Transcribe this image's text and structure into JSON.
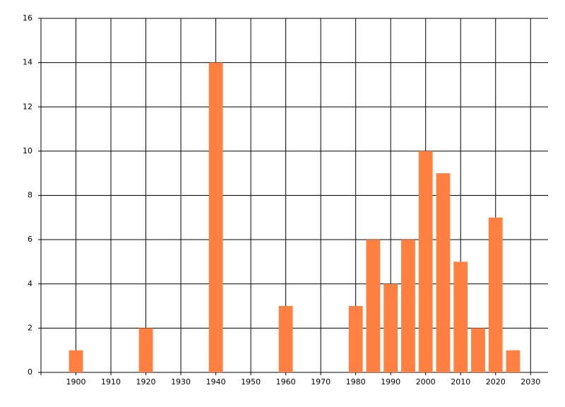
{
  "chart_data": {
    "type": "bar",
    "x": [
      1900,
      1920,
      1940,
      1960,
      1980,
      1985,
      1990,
      1995,
      2000,
      2005,
      2010,
      2015,
      2020,
      2025
    ],
    "values": [
      1,
      2,
      14,
      3,
      3,
      6,
      4,
      6,
      10,
      9,
      5,
      2,
      7,
      1
    ],
    "color": "#ff8040",
    "xlim": [
      1890,
      2035
    ],
    "xticks": [
      1900,
      1910,
      1920,
      1930,
      1940,
      1950,
      1960,
      1970,
      1980,
      1990,
      2000,
      2010,
      2020,
      2030
    ],
    "ylim": [
      0,
      16
    ],
    "yticks": [
      0,
      2,
      4,
      6,
      8,
      10,
      12,
      14,
      16
    ],
    "grid": true
  }
}
